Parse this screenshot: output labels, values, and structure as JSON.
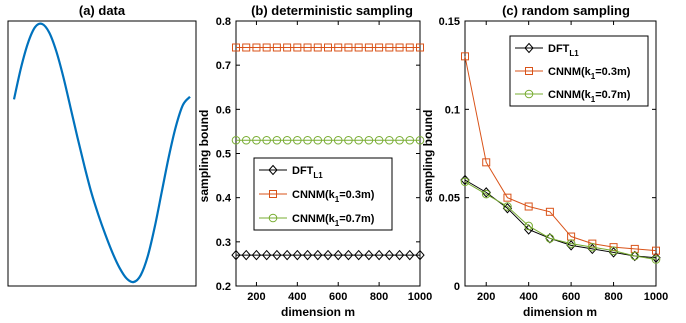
{
  "chart_data": [
    {
      "type": "line",
      "title": "(a) data",
      "xlabel": "",
      "ylabel": "",
      "series": [
        {
          "x": [
            0,
            0.04,
            0.08,
            0.12,
            0.16,
            0.2,
            0.24,
            0.28,
            0.32,
            0.36,
            0.4,
            0.44,
            0.48,
            0.52,
            0.56,
            0.6,
            0.64,
            0.68,
            0.72,
            0.76,
            0.8,
            0.84,
            0.88,
            0.92,
            0.96,
            1.0
          ],
          "y": [
            0.416,
            0.662,
            0.855,
            0.976,
            1.0,
            0.934,
            0.79,
            0.591,
            0.359,
            0.124,
            -0.101,
            -0.309,
            -0.482,
            -0.636,
            -0.775,
            -0.891,
            -0.973,
            -1.0,
            -0.947,
            -0.8,
            -0.571,
            -0.298,
            -0.026,
            0.207,
            0.373,
            0.436
          ],
          "color": "#0072BD"
        }
      ],
      "axes_visible": false
    },
    {
      "type": "line",
      "title": "(b) deterministic sampling",
      "xlabel": "dimension m",
      "ylabel": "sampling bound",
      "xlim": [
        100,
        1000
      ],
      "ylim": [
        0.2,
        0.8
      ],
      "xticks": [
        200,
        400,
        600,
        800,
        1000
      ],
      "yticks": [
        0.2,
        0.3,
        0.4,
        0.5,
        0.6,
        0.7,
        0.8
      ],
      "x": [
        100,
        150,
        200,
        250,
        300,
        350,
        400,
        450,
        500,
        550,
        600,
        650,
        700,
        750,
        800,
        850,
        900,
        950,
        1000
      ],
      "series": [
        {
          "name": "DFT",
          "name_sub": "L1",
          "marker": "diamond",
          "color": "#000000",
          "values": [
            0.27,
            0.27,
            0.27,
            0.27,
            0.27,
            0.27,
            0.27,
            0.27,
            0.27,
            0.27,
            0.27,
            0.27,
            0.27,
            0.27,
            0.27,
            0.27,
            0.27,
            0.27,
            0.27
          ]
        },
        {
          "name": "CNNM(k",
          "name_sub": "1",
          "name_tail": "=0.3m)",
          "marker": "square",
          "color": "#D95319",
          "values": [
            0.74,
            0.74,
            0.74,
            0.74,
            0.74,
            0.74,
            0.74,
            0.74,
            0.74,
            0.74,
            0.74,
            0.74,
            0.74,
            0.74,
            0.74,
            0.74,
            0.74,
            0.74,
            0.74
          ]
        },
        {
          "name": "CNNM(k",
          "name_sub": "1",
          "name_tail": "=0.7m)",
          "marker": "circle",
          "color": "#77AC30",
          "values": [
            0.53,
            0.53,
            0.53,
            0.53,
            0.53,
            0.53,
            0.53,
            0.53,
            0.53,
            0.53,
            0.53,
            0.53,
            0.53,
            0.53,
            0.53,
            0.53,
            0.53,
            0.53,
            0.53
          ]
        }
      ],
      "legend_position": "center-left lower"
    },
    {
      "type": "line",
      "title": "(c) random sampling",
      "xlabel": "dimension m",
      "ylabel": "sampling bound",
      "xlim": [
        100,
        1000
      ],
      "ylim": [
        0,
        0.15
      ],
      "xticks": [
        200,
        400,
        600,
        800,
        1000
      ],
      "yticks": [
        0,
        0.05,
        0.1,
        0.15
      ],
      "x": [
        100,
        200,
        300,
        400,
        500,
        600,
        700,
        800,
        900,
        1000
      ],
      "series": [
        {
          "name": "DFT",
          "name_sub": "L1",
          "marker": "diamond",
          "color": "#000000",
          "values": [
            0.06,
            0.053,
            0.044,
            0.032,
            0.027,
            0.023,
            0.021,
            0.019,
            0.017,
            0.016
          ]
        },
        {
          "name": "CNNM(k",
          "name_sub": "1",
          "name_tail": "=0.3m)",
          "marker": "square",
          "color": "#D95319",
          "values": [
            0.13,
            0.07,
            0.05,
            0.045,
            0.042,
            0.028,
            0.024,
            0.022,
            0.021,
            0.02
          ]
        },
        {
          "name": "CNNM(k",
          "name_sub": "1",
          "name_tail": "=0.7m)",
          "marker": "circle",
          "color": "#77AC30",
          "values": [
            0.059,
            0.052,
            0.045,
            0.034,
            0.027,
            0.024,
            0.022,
            0.02,
            0.017,
            0.015
          ]
        }
      ],
      "legend_position": "top-right"
    }
  ]
}
